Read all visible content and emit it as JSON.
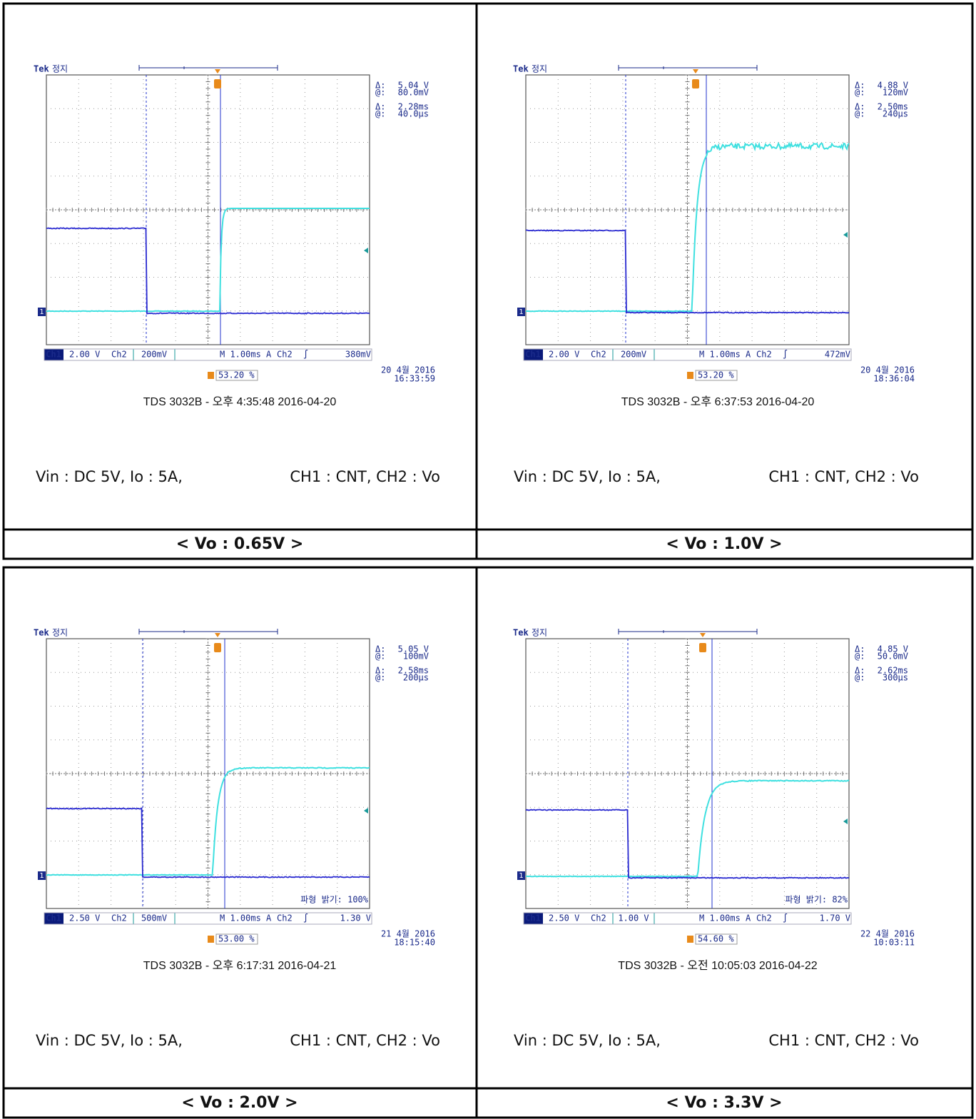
{
  "scope_labels": {
    "brand": "Tek",
    "status": "정지",
    "delta": "Δ:",
    "at": "@:",
    "ch1": "Ch1",
    "ch2": "Ch2",
    "trigger_mode": "A",
    "trigger_slope": "∫",
    "marker": "1"
  },
  "panels": [
    {
      "scope": {
        "cursor1_delta": "5.04 V",
        "cursor1_at": "80.0mV",
        "cursor2_delta": "2.28ms",
        "cursor2_at": "40.0µs",
        "ch1_scale": "2.00 V",
        "ch2_scale": "200mV",
        "timebase": "M 1.00ms",
        "trigger_level": "380mV",
        "trigger_pos": "53.20 %",
        "date": "20 4월 2016",
        "time": "16:33:59"
      },
      "footer": "TDS 3032B - 오후 4:35:48  2016-04-20",
      "conditions": "Vin : DC 5V, Io : 5A,",
      "channels": "CH1 : CNT,   CH2 : Vo",
      "caption": "< Vo : 0.65V >"
    },
    {
      "scope": {
        "cursor1_delta": "4.88 V",
        "cursor1_at": "120mV",
        "cursor2_delta": "2.50ms",
        "cursor2_at": "240µs",
        "ch1_scale": "2.00 V",
        "ch2_scale": "200mV",
        "timebase": "M 1.00ms",
        "trigger_level": "472mV",
        "trigger_pos": "53.20 %",
        "date": "20 4월 2016",
        "time": "18:36:04"
      },
      "footer": "TDS 3032B - 오후 6:37:53  2016-04-20",
      "conditions": "Vin : DC 5V, Io : 5A,",
      "channels": "CH1 : CNT,   CH2 : Vo",
      "caption": "< Vo : 1.0V >"
    },
    {
      "scope": {
        "cursor1_delta": "5.05 V",
        "cursor1_at": "100mV",
        "cursor2_delta": "2.58ms",
        "cursor2_at": "200µs",
        "ch1_scale": "2.50 V",
        "ch2_scale": "500mV",
        "timebase": "M 1.00ms",
        "trigger_level": "1.30 V",
        "trigger_pos": "53.00 %",
        "date": "21 4월 2016",
        "time": "18:15:40",
        "brightness": "파형 밝기: 100%"
      },
      "footer": "TDS 3032B - 오후 6:17:31  2016-04-21",
      "conditions": "Vin : DC 5V, Io : 5A,",
      "channels": "CH1 : CNT,   CH2 : Vo",
      "caption": "< Vo : 2.0V >"
    },
    {
      "scope": {
        "cursor1_delta": "4.85 V",
        "cursor1_at": "50.0mV",
        "cursor2_delta": "2.62ms",
        "cursor2_at": "300µs",
        "ch1_scale": "2.50 V",
        "ch2_scale": "1.00 V",
        "timebase": "M 1.00ms",
        "trigger_level": "1.70 V",
        "trigger_pos": "54.60 %",
        "date": "22 4월 2016",
        "time": "10:03:11",
        "brightness": "파형 밝기:  82%"
      },
      "footer": "TDS 3032B - 오전 10:05:03  2016-04-22",
      "conditions": "Vin : DC 5V, Io : 5A,",
      "channels": "CH1 : CNT,   CH2 : Vo",
      "caption": "< Vo : 3.3V >"
    }
  ]
}
